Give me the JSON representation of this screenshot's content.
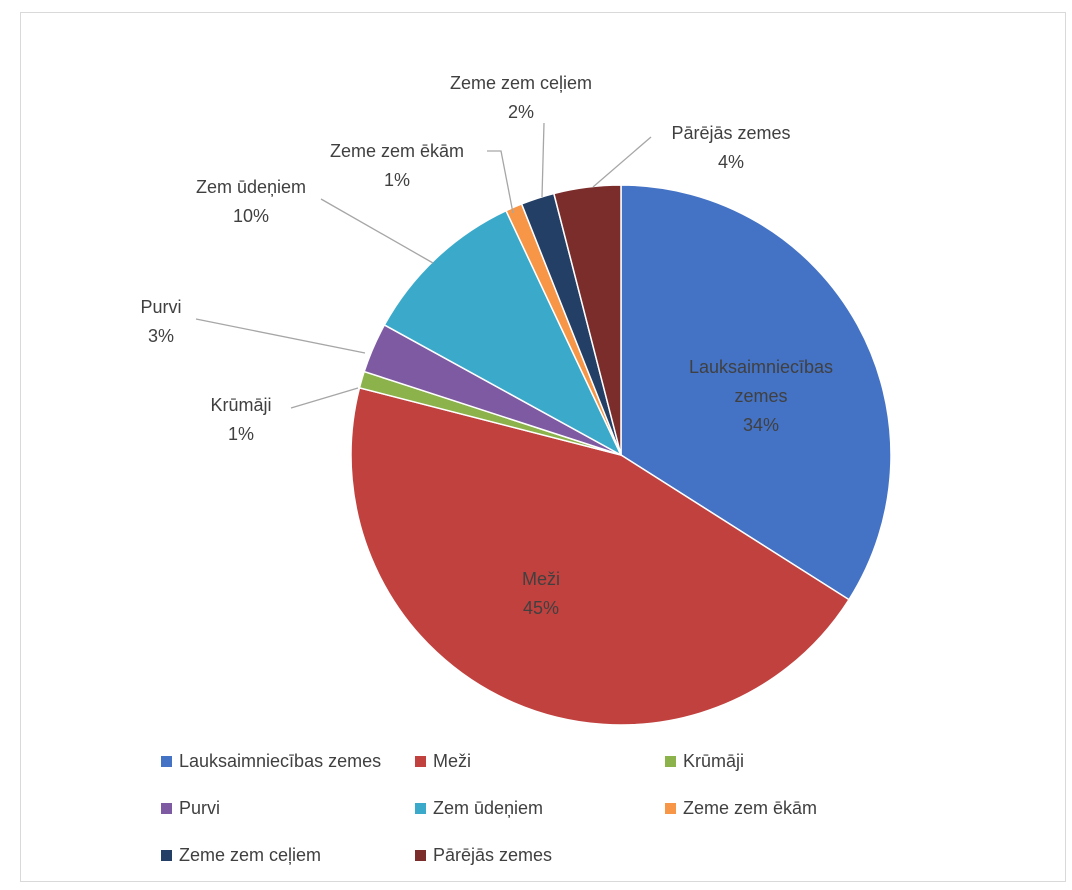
{
  "chart_data": {
    "type": "pie",
    "title": "",
    "slices": [
      {
        "label": "Lauksaimniecības zemes",
        "value": 34,
        "value_label": "34%",
        "color": "#4472C4"
      },
      {
        "label": "Meži",
        "value": 45,
        "value_label": "45%",
        "color": "#C0413E"
      },
      {
        "label": "Krūmāji",
        "value": 1,
        "value_label": "1%",
        "color": "#8CB24B"
      },
      {
        "label": "Purvi",
        "value": 3,
        "value_label": "3%",
        "color": "#7E5AA2"
      },
      {
        "label": "Zem ūdeņiem",
        "value": 10,
        "value_label": "10%",
        "color": "#3BAACA"
      },
      {
        "label": "Zeme zem ēkām",
        "value": 1,
        "value_label": "1%",
        "color": "#F79646"
      },
      {
        "label": "Zeme zem ceļiem",
        "value": 2,
        "value_label": "2%",
        "color": "#243F66"
      },
      {
        "label": "Pārējās zemes",
        "value": 4,
        "value_label": "4%",
        "color": "#7B2D2B"
      }
    ],
    "start_angle_deg": 0,
    "direction": "clockwise",
    "legend": "bottom"
  }
}
